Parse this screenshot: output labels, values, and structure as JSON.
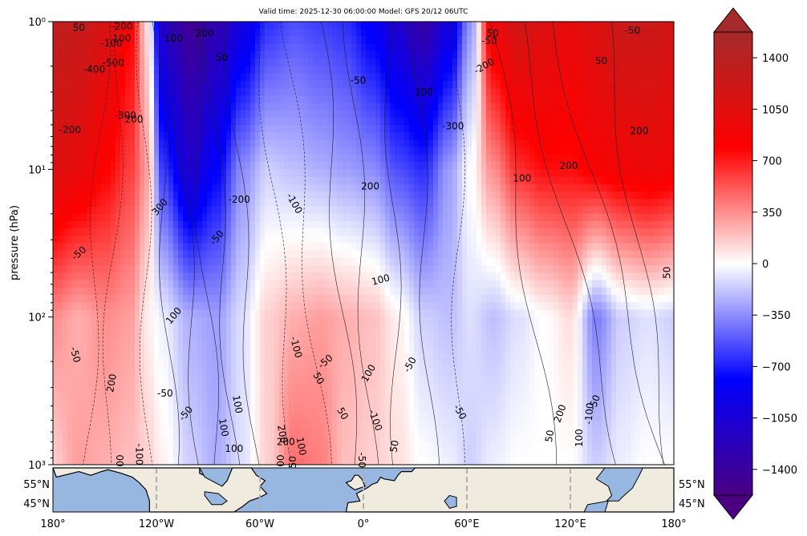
{
  "chart_data": {
    "type": "heatmap",
    "title": "Valid time: 2025-12-30 06:00:00 Model: GFS 20/12 06UTC",
    "ylabel": "pressure (hPa)",
    "y_scale": "log",
    "ylim": [
      1000,
      1
    ],
    "y_ticks": [
      {
        "value": 1,
        "label": "10⁰"
      },
      {
        "value": 10,
        "label": "10¹"
      },
      {
        "value": 100,
        "label": "10²"
      },
      {
        "value": 1000,
        "label": "10³"
      }
    ],
    "colorbar": {
      "range": [
        -1575,
        1575
      ],
      "extend": "both",
      "ticks": [
        {
          "value": 1400,
          "label": "1400"
        },
        {
          "value": 1050,
          "label": "1050"
        },
        {
          "value": 700,
          "label": "700"
        },
        {
          "value": 350,
          "label": "350"
        },
        {
          "value": 0,
          "label": "0"
        },
        {
          "value": -350,
          "label": "−350"
        },
        {
          "value": -700,
          "label": "−700"
        },
        {
          "value": -1050,
          "label": "−1050"
        },
        {
          "value": -1400,
          "label": "−1400"
        }
      ],
      "colors": [
        "#4b0082",
        "#0000ff",
        "#ffffff",
        "#ff0000",
        "#a52a2a"
      ]
    },
    "x_ticks": [
      {
        "value": -180,
        "label": "180°"
      },
      {
        "value": -120,
        "label": "120°W"
      },
      {
        "value": -60,
        "label": "60°W"
      },
      {
        "value": 0,
        "label": "0°"
      },
      {
        "value": 60,
        "label": "60°E"
      },
      {
        "value": 120,
        "label": "120°E"
      },
      {
        "value": 180,
        "label": "180°"
      }
    ],
    "map_lat_labels": [
      "55°N",
      "45°N"
    ],
    "field_columns": [
      {
        "lon": -180,
        "p1": 1350,
        "p10": 1100,
        "p100": 350,
        "p1000": 150
      },
      {
        "lon": -165,
        "p1": 1300,
        "p10": 1000,
        "p100": 250,
        "p1000": 300
      },
      {
        "lon": -150,
        "p1": 1150,
        "p10": 800,
        "p100": 350,
        "p1000": 250
      },
      {
        "lon": -135,
        "p1": 800,
        "p10": 600,
        "p100": 300,
        "p1000": 200
      },
      {
        "lon": -125,
        "p1": 100,
        "p10": 300,
        "p100": 50,
        "p1000": 150
      },
      {
        "lon": -117,
        "p1": -1150,
        "p10": -600,
        "p100": -50,
        "p1000": 50
      },
      {
        "lon": -100,
        "p1": -1450,
        "p10": -1100,
        "p100": -250,
        "p1000": -150
      },
      {
        "lon": -85,
        "p1": -1300,
        "p10": -800,
        "p100": -300,
        "p1000": -250
      },
      {
        "lon": -70,
        "p1": -1000,
        "p10": -350,
        "p100": -100,
        "p1000": -100
      },
      {
        "lon": -55,
        "p1": -650,
        "p10": -150,
        "p100": 150,
        "p1000": 150
      },
      {
        "lon": -40,
        "p1": -550,
        "p10": -200,
        "p100": 250,
        "p1000": 450
      },
      {
        "lon": -25,
        "p1": -600,
        "p10": -250,
        "p100": 300,
        "p1000": 400
      },
      {
        "lon": -10,
        "p1": -650,
        "p10": -300,
        "p100": 250,
        "p1000": 200
      },
      {
        "lon": 5,
        "p1": -850,
        "p10": -350,
        "p100": 200,
        "p1000": 150
      },
      {
        "lon": 20,
        "p1": -1100,
        "p10": -550,
        "p100": 50,
        "p1000": 100
      },
      {
        "lon": 35,
        "p1": -1350,
        "p10": -650,
        "p100": -150,
        "p1000": 0
      },
      {
        "lon": 50,
        "p1": -1000,
        "p10": -300,
        "p100": -200,
        "p1000": -50
      },
      {
        "lon": 62,
        "p1": -350,
        "p10": 0,
        "p100": -100,
        "p1000": -150
      },
      {
        "lon": 75,
        "p1": 950,
        "p10": 350,
        "p100": -200,
        "p1000": -50
      },
      {
        "lon": 90,
        "p1": 1200,
        "p10": 650,
        "p100": -100,
        "p1000": 0
      },
      {
        "lon": 105,
        "p1": 1100,
        "p10": 750,
        "p100": 0,
        "p1000": 0
      },
      {
        "lon": 120,
        "p1": 1000,
        "p10": 750,
        "p100": 100,
        "p1000": 0
      },
      {
        "lon": 135,
        "p1": 1100,
        "p10": 850,
        "p100": -400,
        "p1000": -150
      },
      {
        "lon": 150,
        "p1": 1250,
        "p10": 900,
        "p100": -150,
        "p1000": -50
      },
      {
        "lon": 165,
        "p1": 1250,
        "p10": 950,
        "p100": -100,
        "p1000": 0
      },
      {
        "lon": 180,
        "p1": 1200,
        "p10": 900,
        "p100": -150,
        "p1000": 0
      }
    ],
    "contour_labels": [
      {
        "text": "50",
        "lon": -165,
        "p": 1.1,
        "rot": 0
      },
      {
        "text": "-200",
        "lon": -140,
        "p": 1.08,
        "rot": 0
      },
      {
        "text": "100",
        "lon": -140,
        "p": 1.3,
        "rot": 0
      },
      {
        "text": "-100",
        "lon": -146,
        "p": 1.4,
        "rot": 0
      },
      {
        "text": "-500",
        "lon": -145,
        "p": 1.9,
        "rot": 0
      },
      {
        "text": "-400",
        "lon": -156,
        "p": 2.1,
        "rot": 0
      },
      {
        "text": "-300",
        "lon": -138,
        "p": 4.3,
        "rot": 0
      },
      {
        "text": "200",
        "lon": -133,
        "p": 4.6,
        "rot": 0
      },
      {
        "text": "-200",
        "lon": -170,
        "p": 5.4,
        "rot": 0
      },
      {
        "text": "100",
        "lon": -110,
        "p": 1.3,
        "rot": 0
      },
      {
        "text": "200",
        "lon": -92,
        "p": 1.2,
        "rot": 0
      },
      {
        "text": "50",
        "lon": -82,
        "p": 1.75,
        "rot": 0
      },
      {
        "text": "-50",
        "lon": -3,
        "p": 2.5,
        "rot": 0
      },
      {
        "text": "100",
        "lon": 35,
        "p": 3.0,
        "rot": 0
      },
      {
        "text": "50",
        "lon": 75,
        "p": 1.2,
        "rot": 0
      },
      {
        "text": "-50",
        "lon": 73,
        "p": 1.35,
        "rot": 0
      },
      {
        "text": "-200",
        "lon": 70,
        "p": 2.0,
        "rot": -30
      },
      {
        "text": "-300",
        "lon": 52,
        "p": 5.1,
        "rot": 0
      },
      {
        "text": "-50",
        "lon": 156,
        "p": 1.15,
        "rot": 0
      },
      {
        "text": "50",
        "lon": 138,
        "p": 1.85,
        "rot": 0
      },
      {
        "text": "200",
        "lon": 160,
        "p": 5.5,
        "rot": 0
      },
      {
        "text": "200",
        "lon": 119,
        "p": 9.5,
        "rot": 0
      },
      {
        "text": "100",
        "lon": 92,
        "p": 11.5,
        "rot": 0
      },
      {
        "text": "200",
        "lon": 4,
        "p": 13.0,
        "rot": 0
      },
      {
        "text": "-100",
        "lon": -40,
        "p": 17.0,
        "rot": 60
      },
      {
        "text": "-200",
        "lon": -72,
        "p": 16.0,
        "rot": 0
      },
      {
        "text": "-50",
        "lon": -85,
        "p": 29.0,
        "rot": -50
      },
      {
        "text": "300",
        "lon": -118,
        "p": 18.0,
        "rot": -50
      },
      {
        "text": "-50",
        "lon": -165,
        "p": 37.0,
        "rot": -40
      },
      {
        "text": "50",
        "lon": 176,
        "p": 50.0,
        "rot": -90
      },
      {
        "text": "100",
        "lon": 10,
        "p": 56.0,
        "rot": -15
      },
      {
        "text": "100",
        "lon": -110,
        "p": 98.0,
        "rot": -50
      },
      {
        "text": "-100",
        "lon": -39,
        "p": 160.0,
        "rot": 75
      },
      {
        "text": "-50",
        "lon": -22,
        "p": 200.0,
        "rot": -40
      },
      {
        "text": "50",
        "lon": -26,
        "p": 260.0,
        "rot": 60
      },
      {
        "text": "100",
        "lon": 3,
        "p": 240.0,
        "rot": -60
      },
      {
        "text": "-50",
        "lon": 27,
        "p": 210.0,
        "rot": -60
      },
      {
        "text": "-50",
        "lon": -167,
        "p": 180.0,
        "rot": 75
      },
      {
        "text": "200",
        "lon": -146,
        "p": 280.0,
        "rot": -80
      },
      {
        "text": "-50",
        "lon": -115,
        "p": 330.0,
        "rot": 0
      },
      {
        "text": "-50",
        "lon": -103,
        "p": 450.0,
        "rot": -50
      },
      {
        "text": "100",
        "lon": -73,
        "p": 390.0,
        "rot": 80
      },
      {
        "text": "100",
        "lon": -81,
        "p": 560.0,
        "rot": 80
      },
      {
        "text": "-50",
        "lon": -183,
        "p": 290.0,
        "rot": 0
      },
      {
        "text": "100",
        "lon": -75,
        "p": 780.0,
        "rot": 0
      },
      {
        "text": "-100",
        "lon": -130,
        "p": 850.0,
        "rot": 90
      },
      {
        "text": "200",
        "lon": -47,
        "p": 620.0,
        "rot": 80
      },
      {
        "text": "200",
        "lon": -45,
        "p": 700.0,
        "rot": 0
      },
      {
        "text": "100",
        "lon": -36,
        "p": 750.0,
        "rot": 80
      },
      {
        "text": "50",
        "lon": -12,
        "p": 450.0,
        "rot": 60
      },
      {
        "text": "-100",
        "lon": 7,
        "p": 500.0,
        "rot": 70
      },
      {
        "text": "-50",
        "lon": 56,
        "p": 440.0,
        "rot": 60
      },
      {
        "text": "50",
        "lon": 18,
        "p": 750.0,
        "rot": -80
      },
      {
        "text": "50",
        "lon": 108,
        "p": 640.0,
        "rot": -80
      },
      {
        "text": "200",
        "lon": 114,
        "p": 450.0,
        "rot": -70
      },
      {
        "text": "100",
        "lon": 125,
        "p": 660.0,
        "rot": -90
      },
      {
        "text": "-100",
        "lon": 131,
        "p": 450.0,
        "rot": -85
      },
      {
        "text": "-50",
        "lon": 134,
        "p": 380.0,
        "rot": -70
      },
      {
        "text": "50",
        "lon": -41,
        "p": 960.0,
        "rot": -90
      },
      {
        "text": "-50",
        "lon": -1,
        "p": 930.0,
        "rot": 90
      },
      {
        "text": "00",
        "lon": -141,
        "p": 940.0,
        "rot": -90
      },
      {
        "text": "00",
        "lon": -48,
        "p": 940.0,
        "rot": -90
      }
    ]
  }
}
